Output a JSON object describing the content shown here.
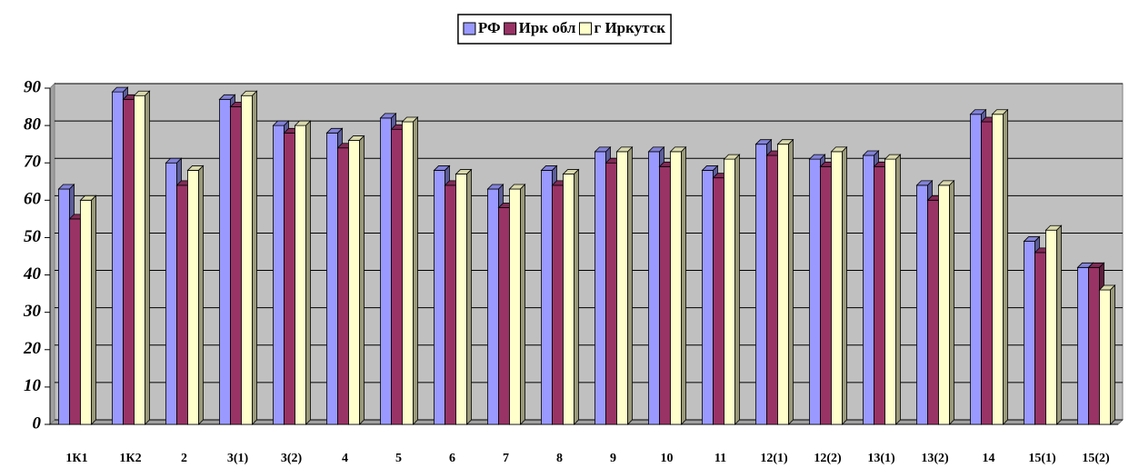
{
  "chart_data": {
    "type": "bar3d",
    "categories": [
      "1К1",
      "1К2",
      "2",
      "3(1)",
      "3(2)",
      "4",
      "5",
      "6",
      "7",
      "8",
      "9",
      "10",
      "11",
      "12(1)",
      "12(2)",
      "13(1)",
      "13(2)",
      "14",
      "15(1)",
      "15(2)"
    ],
    "series": [
      {
        "name": "РФ",
        "color": "#9999ff",
        "values": [
          63,
          89,
          70,
          87,
          80,
          78,
          82,
          68,
          63,
          68,
          73,
          73,
          68,
          75,
          71,
          72,
          64,
          83,
          49,
          42
        ]
      },
      {
        "name": "Ирк обл",
        "color": "#993366",
        "values": [
          55,
          87,
          64,
          85,
          78,
          74,
          79,
          64,
          58,
          64,
          70,
          69,
          66,
          72,
          69,
          69,
          60,
          81,
          46,
          42
        ]
      },
      {
        "name": "г Иркутск",
        "color": "#ffffcc",
        "values": [
          60,
          88,
          68,
          88,
          80,
          76,
          81,
          67,
          63,
          67,
          73,
          73,
          71,
          75,
          73,
          71,
          64,
          83,
          52,
          36
        ]
      }
    ],
    "ylim": [
      0,
      90
    ],
    "yticks": [
      0,
      10,
      20,
      30,
      40,
      50,
      60,
      70,
      80,
      90
    ],
    "grid": true,
    "legend": "top"
  }
}
